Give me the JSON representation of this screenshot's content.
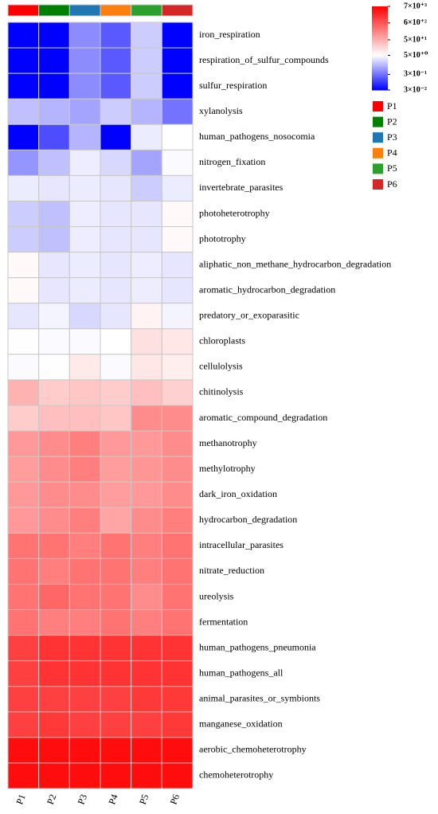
{
  "chart_data": {
    "type": "heatmap",
    "columns": [
      {
        "name": "P1",
        "color": "#ff0000"
      },
      {
        "name": "P2",
        "color": "#008000"
      },
      {
        "name": "P3",
        "color": "#1f77b4"
      },
      {
        "name": "P4",
        "color": "#ff7f0e"
      },
      {
        "name": "P5",
        "color": "#2ca02c"
      },
      {
        "name": "P6",
        "color": "#d62728"
      }
    ],
    "rows": [
      "iron_respiration",
      "respiration_of_sulfur_compounds",
      "sulfur_respiration",
      "xylanolysis",
      "human_pathogens_nosocomia",
      "nitrogen_fixation",
      "invertebrate_parasites",
      "photoheterotrophy",
      "phototrophy",
      "aliphatic_non_methane_hydrocarbon_degradation",
      "aromatic_hydrocarbon_degradation",
      "predatory_or_exoparasitic",
      "chloroplasts",
      "cellulolysis",
      "chitinolysis",
      "aromatic_compound_degradation",
      "methanotrophy",
      "methylotrophy",
      "dark_iron_oxidation",
      "hydrocarbon_degradation",
      "intracellular_parasites",
      "nitrate_reduction",
      "ureolysis",
      "fermentation",
      "human_pathogens_pneumonia",
      "human_pathogens_all",
      "animal_parasites_or_symbionts",
      "manganese_oxidation",
      "aerobic_chemoheterotrophy",
      "chemoheterotrophy"
    ],
    "values": [
      [
        0.03,
        0.03,
        0.5,
        0.18,
        1.8,
        0.03
      ],
      [
        0.03,
        0.03,
        0.5,
        0.18,
        1.8,
        0.03
      ],
      [
        0.03,
        0.03,
        0.5,
        0.18,
        1.8,
        0.03
      ],
      [
        1.4,
        1.1,
        0.8,
        1.8,
        1.1,
        0.3
      ],
      [
        0.03,
        0.14,
        1.1,
        0.03,
        3.4,
        5
      ],
      [
        0.6,
        1.4,
        3.5,
        2.3,
        0.8,
        4.5
      ],
      [
        3.4,
        3,
        3.4,
        3,
        1.8,
        3.4
      ],
      [
        1.8,
        1.4,
        3.5,
        3,
        3,
        6
      ],
      [
        1.8,
        1.4,
        3.5,
        3,
        3,
        6
      ],
      [
        6,
        3,
        3.4,
        3,
        3.5,
        3
      ],
      [
        6,
        3,
        3.4,
        3,
        3.5,
        3
      ],
      [
        3,
        4,
        2.3,
        3,
        7,
        4
      ],
      [
        5.2,
        4.6,
        4.6,
        5,
        12,
        10
      ],
      [
        4.6,
        5.2,
        9,
        4.6,
        10,
        8
      ],
      [
        45,
        21,
        25,
        21,
        31,
        19
      ],
      [
        21,
        31,
        31,
        25,
        130,
        130
      ],
      [
        91,
        130,
        190,
        91,
        91,
        130
      ],
      [
        80,
        130,
        190,
        80,
        100,
        130
      ],
      [
        91,
        130,
        130,
        80,
        91,
        130
      ],
      [
        91,
        130,
        190,
        65,
        130,
        190
      ],
      [
        270,
        270,
        190,
        270,
        190,
        270
      ],
      [
        270,
        190,
        270,
        270,
        190,
        270
      ],
      [
        270,
        390,
        270,
        270,
        130,
        270
      ],
      [
        270,
        190,
        190,
        270,
        190,
        270
      ],
      [
        1150,
        1660,
        1660,
        1660,
        1660,
        1660
      ],
      [
        1150,
        1660,
        1660,
        1660,
        1660,
        1660
      ],
      [
        1150,
        1150,
        1150,
        1150,
        1440,
        1440
      ],
      [
        1150,
        1440,
        1150,
        1150,
        1150,
        1440
      ],
      [
        4900,
        4900,
        4900,
        4900,
        4900,
        4900
      ],
      [
        4900,
        4900,
        4900,
        4900,
        4900,
        4900
      ]
    ],
    "log_scale": true,
    "clim": [
      0.03,
      7000
    ],
    "color_stops": [
      {
        "value": 0.03,
        "color": "#0000ff"
      },
      {
        "value": 5,
        "color": "#ffffff"
      },
      {
        "value": 7000,
        "color": "#ff0000"
      }
    ],
    "cticks": [
      {
        "value": 7000,
        "label": "7×10⁺³"
      },
      {
        "value": 600,
        "label": "6×10⁺²"
      },
      {
        "value": 50,
        "label": "5×10⁺¹"
      },
      {
        "value": 5,
        "label": "5×10⁺⁰"
      },
      {
        "value": 0.3,
        "label": "3×10⁻¹"
      },
      {
        "value": 0.03,
        "label": "3×10⁻²"
      }
    ]
  }
}
